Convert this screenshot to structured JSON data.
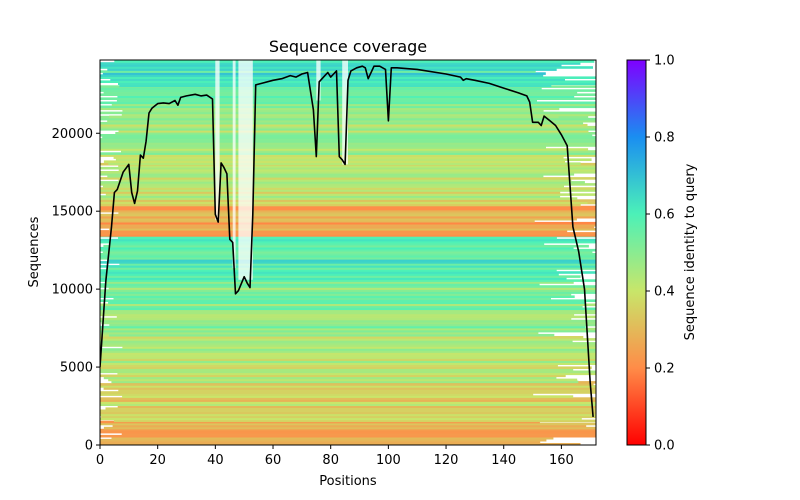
{
  "chart_data": {
    "type": "heatmap",
    "title": "Sequence coverage",
    "xlabel": "Positions",
    "ylabel": "Sequences",
    "colorbar_label": "Sequence identity to query",
    "colormap": "rainbow_r",
    "xlim": [
      0,
      172
    ],
    "ylim": [
      0,
      24700
    ],
    "clim": [
      0,
      1
    ],
    "x_ticks": [
      0,
      20,
      40,
      60,
      80,
      100,
      120,
      140,
      160
    ],
    "y_ticks": [
      0,
      5000,
      10000,
      15000,
      20000
    ],
    "colorbar_ticks": [
      0.0,
      0.2,
      0.4,
      0.6,
      0.8,
      1.0
    ],
    "x_tick_labels": [
      "0",
      "20",
      "40",
      "60",
      "80",
      "100",
      "120",
      "140",
      "160"
    ],
    "y_tick_labels": [
      "0",
      "5000",
      "10000",
      "15000",
      "20000"
    ],
    "colorbar_tick_labels": [
      "0.0",
      "0.2",
      "0.4",
      "0.6",
      "0.8",
      "1.0"
    ],
    "identity_bands": [
      {
        "y0": 0,
        "y1": 1500,
        "identity": 0.28
      },
      {
        "y0": 1500,
        "y1": 4000,
        "identity": 0.36
      },
      {
        "y0": 4000,
        "y1": 7000,
        "identity": 0.42
      },
      {
        "y0": 7000,
        "y1": 10500,
        "identity": 0.5
      },
      {
        "y0": 10500,
        "y1": 13400,
        "identity": 0.6
      },
      {
        "y0": 13400,
        "y1": 15500,
        "identity": 0.27
      },
      {
        "y0": 15500,
        "y1": 18000,
        "identity": 0.4
      },
      {
        "y0": 18000,
        "y1": 21000,
        "identity": 0.45
      },
      {
        "y0": 21000,
        "y1": 23000,
        "identity": 0.52
      },
      {
        "y0": 23000,
        "y1": 24700,
        "identity": 0.62
      }
    ],
    "series": [
      {
        "name": "coverage",
        "color": "#000000",
        "x": [
          0,
          2,
          4,
          5,
          6,
          8,
          10,
          11,
          12,
          13,
          14,
          15,
          16,
          17,
          18,
          20,
          22,
          24,
          26,
          27,
          28,
          30,
          33,
          35,
          37,
          39,
          40,
          41,
          42,
          43,
          44,
          45,
          46,
          47,
          48,
          50,
          51,
          52,
          53,
          54,
          56,
          60,
          63,
          66,
          68,
          70,
          72,
          73,
          74,
          75,
          76,
          78,
          79,
          80,
          81,
          82,
          83,
          84,
          85,
          86,
          87,
          89,
          91,
          92,
          93,
          95,
          97,
          98,
          99,
          100,
          101,
          103,
          110,
          120,
          125,
          126,
          127,
          130,
          135,
          140,
          145,
          148,
          149,
          150,
          152,
          153,
          154,
          156,
          158,
          160,
          162,
          164,
          166,
          168,
          170,
          171
        ],
        "y": [
          5000,
          10500,
          14000,
          16200,
          16400,
          17500,
          18000,
          16200,
          15500,
          16300,
          18600,
          18400,
          19500,
          21300,
          21600,
          21900,
          21950,
          21900,
          22100,
          21800,
          22300,
          22400,
          22500,
          22400,
          22450,
          22200,
          14800,
          14300,
          18100,
          17800,
          17400,
          13200,
          13000,
          9700,
          9900,
          10800,
          10400,
          10100,
          14800,
          23100,
          23200,
          23400,
          23500,
          23700,
          23600,
          23800,
          23900,
          22700,
          21500,
          18500,
          23300,
          23700,
          23900,
          23600,
          23800,
          24000,
          18500,
          18300,
          18000,
          23400,
          24000,
          24200,
          24300,
          24200,
          23500,
          24300,
          24300,
          24200,
          24100,
          20800,
          24200,
          24200,
          24100,
          23800,
          23600,
          23400,
          23500,
          23400,
          23200,
          22900,
          22600,
          22400,
          22000,
          20700,
          20700,
          20500,
          21100,
          20800,
          20500,
          19900,
          19200,
          14000,
          12400,
          10000,
          4000,
          1800
        ]
      }
    ]
  }
}
